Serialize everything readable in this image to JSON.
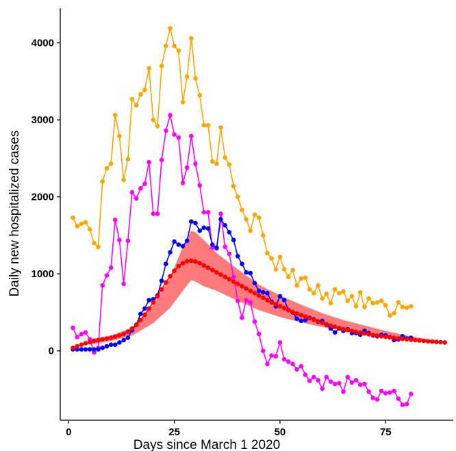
{
  "chart_data": {
    "type": "line",
    "title": "",
    "xlabel": "Days since March 1 2020",
    "ylabel": "Daily new hospitalized cases",
    "xlim": [
      -2,
      91
    ],
    "ylim": [
      -900,
      4450
    ],
    "xticks": [
      0,
      25,
      50,
      75
    ],
    "yticks": [
      0,
      1000,
      2000,
      3000,
      4000
    ],
    "grid": false,
    "legend": "none",
    "band": {
      "color": "#ff7b7b",
      "x": [
        5,
        10,
        15,
        20,
        24,
        27,
        29,
        30,
        32,
        35,
        40,
        45,
        50,
        55,
        60,
        65,
        70,
        75,
        80,
        85,
        89
      ],
      "lower": [
        80,
        130,
        200,
        360,
        560,
        780,
        920,
        900,
        840,
        780,
        650,
        530,
        440,
        370,
        310,
        260,
        220,
        180,
        150,
        120,
        100
      ],
      "upper": [
        150,
        200,
        300,
        600,
        950,
        1350,
        1560,
        1540,
        1440,
        1270,
        1060,
        860,
        720,
        600,
        490,
        400,
        330,
        260,
        200,
        150,
        120
      ]
    },
    "series": [
      {
        "color": "#ffa500",
        "x": [
          1,
          2,
          3,
          4,
          5,
          6,
          7,
          8,
          9,
          10,
          11,
          12,
          13,
          14,
          15,
          16,
          17,
          18,
          19,
          20,
          21,
          22,
          23,
          24,
          25,
          26,
          27,
          28,
          29,
          30,
          31,
          32,
          33,
          34,
          35,
          36,
          37,
          38,
          39,
          40,
          41,
          42,
          43,
          44,
          45,
          46,
          47,
          48,
          49,
          50,
          51,
          52,
          53,
          54,
          55,
          56,
          57,
          58,
          59,
          60,
          61,
          62,
          63,
          64,
          65,
          66,
          67,
          68,
          69,
          70,
          71,
          72,
          73,
          74,
          75,
          76,
          77,
          78,
          79,
          80,
          81
        ],
        "y": [
          1730,
          1620,
          1650,
          1670,
          1580,
          1400,
          1350,
          2200,
          2370,
          2430,
          3060,
          2790,
          2220,
          2490,
          3270,
          3190,
          3330,
          3390,
          3670,
          3000,
          2920,
          3700,
          3960,
          4190,
          3960,
          3900,
          3230,
          3560,
          4060,
          3540,
          3320,
          2930,
          2930,
          2460,
          2430,
          2900,
          2510,
          2420,
          2140,
          2000,
          1830,
          1710,
          1560,
          1770,
          1730,
          1500,
          1270,
          1200,
          1060,
          1220,
          1060,
          960,
          1050,
          850,
          940,
          950,
          800,
          750,
          850,
          680,
          740,
          620,
          800,
          750,
          770,
          650,
          710,
          580,
          760,
          570,
          680,
          620,
          630,
          650,
          590,
          460,
          490,
          630,
          570,
          560,
          580
        ]
      },
      {
        "color": "#ff00ff",
        "x": [
          1,
          2,
          3,
          4,
          5,
          6,
          7,
          8,
          9,
          10,
          11,
          12,
          13,
          14,
          15,
          16,
          17,
          18,
          19,
          20,
          21,
          22,
          23,
          24,
          25,
          26,
          27,
          28,
          29,
          30,
          31,
          32,
          33,
          34,
          35,
          36,
          37,
          38,
          39,
          40,
          41,
          42,
          43,
          44,
          45,
          46,
          47,
          48,
          49,
          50,
          51,
          52,
          53,
          54,
          55,
          56,
          57,
          58,
          59,
          60,
          61,
          62,
          63,
          64,
          65,
          66,
          67,
          68,
          69,
          70,
          71,
          72,
          73,
          74,
          75,
          76,
          77,
          78,
          79,
          80,
          81
        ],
        "y": [
          300,
          180,
          220,
          240,
          150,
          -20,
          40,
          850,
          980,
          1080,
          1700,
          1440,
          870,
          1430,
          2060,
          1980,
          2110,
          2170,
          2450,
          1780,
          1780,
          2480,
          2860,
          3060,
          2810,
          2770,
          2180,
          2380,
          2790,
          2430,
          2150,
          1800,
          1800,
          1340,
          1330,
          1780,
          1350,
          1260,
          960,
          650,
          430,
          660,
          630,
          380,
          220,
          0,
          -170,
          -60,
          -70,
          110,
          -110,
          -140,
          -170,
          -240,
          -200,
          -310,
          -390,
          -340,
          -380,
          -490,
          -340,
          -400,
          -430,
          -420,
          -530,
          -340,
          -410,
          -380,
          -440,
          -430,
          -530,
          -610,
          -630,
          -520,
          -550,
          -540,
          -520,
          -620,
          -700,
          -690,
          -560
        ]
      },
      {
        "color": "#0000ff",
        "x": [
          1,
          2,
          3,
          4,
          5,
          6,
          7,
          8,
          9,
          10,
          11,
          12,
          13,
          14,
          15,
          16,
          17,
          18,
          19,
          20,
          21,
          22,
          23,
          24,
          25,
          26,
          27,
          28,
          29,
          30,
          31,
          32,
          33,
          34,
          35,
          36,
          37,
          38,
          39,
          40,
          41,
          42,
          43,
          44,
          45,
          46,
          47,
          48,
          49,
          50,
          51,
          52,
          53,
          54,
          55,
          56,
          57,
          58,
          59,
          60,
          61,
          62,
          63,
          64,
          65,
          66,
          67,
          68,
          69,
          70,
          71,
          72,
          73,
          74,
          75,
          76,
          77,
          78,
          79,
          80,
          81
        ],
        "y": [
          20,
          20,
          20,
          20,
          20,
          20,
          20,
          40,
          60,
          80,
          80,
          110,
          140,
          170,
          270,
          340,
          480,
          550,
          660,
          670,
          720,
          910,
          1130,
          1280,
          1420,
          1380,
          1360,
          1430,
          1680,
          1660,
          1560,
          1600,
          1590,
          1380,
          1340,
          1710,
          1630,
          1540,
          1440,
          1230,
          1130,
          1020,
          1010,
          880,
          780,
          760,
          750,
          640,
          580,
          710,
          660,
          530,
          500,
          420,
          390,
          400,
          430,
          410,
          380,
          390,
          340,
          290,
          240,
          290,
          260,
          280,
          230,
          230,
          210,
          260,
          230,
          200,
          190,
          210,
          200,
          180,
          140,
          150,
          190,
          160,
          170
        ]
      },
      {
        "color": "#ff0000",
        "x": [
          1,
          2,
          3,
          4,
          5,
          6,
          7,
          8,
          9,
          10,
          11,
          12,
          13,
          14,
          15,
          16,
          17,
          18,
          19,
          20,
          21,
          22,
          23,
          24,
          25,
          26,
          27,
          28,
          29,
          30,
          31,
          32,
          33,
          34,
          35,
          36,
          37,
          38,
          39,
          40,
          41,
          42,
          43,
          44,
          45,
          46,
          47,
          48,
          49,
          50,
          51,
          52,
          53,
          54,
          55,
          56,
          57,
          58,
          59,
          60,
          61,
          62,
          63,
          64,
          65,
          66,
          67,
          68,
          69,
          70,
          71,
          72,
          73,
          74,
          75,
          76,
          77,
          78,
          79,
          80,
          81,
          82,
          83,
          84,
          85,
          86,
          87,
          88,
          89
        ],
        "y": [
          40,
          60,
          80,
          100,
          115,
          130,
          140,
          150,
          160,
          170,
          185,
          200,
          220,
          250,
          290,
          340,
          400,
          470,
          550,
          630,
          710,
          800,
          890,
          970,
          1040,
          1100,
          1140,
          1165,
          1170,
          1160,
          1140,
          1110,
          1080,
          1050,
          1020,
          990,
          960,
          930,
          900,
          870,
          840,
          810,
          780,
          750,
          720,
          690,
          660,
          630,
          605,
          580,
          555,
          530,
          505,
          485,
          465,
          445,
          425,
          405,
          385,
          365,
          345,
          328,
          312,
          297,
          283,
          270,
          258,
          247,
          236,
          226,
          216,
          207,
          198,
          190,
          182,
          175,
          168,
          162,
          156,
          150,
          145,
          140,
          135,
          130,
          125,
          121,
          117,
          113,
          110
        ]
      }
    ]
  }
}
